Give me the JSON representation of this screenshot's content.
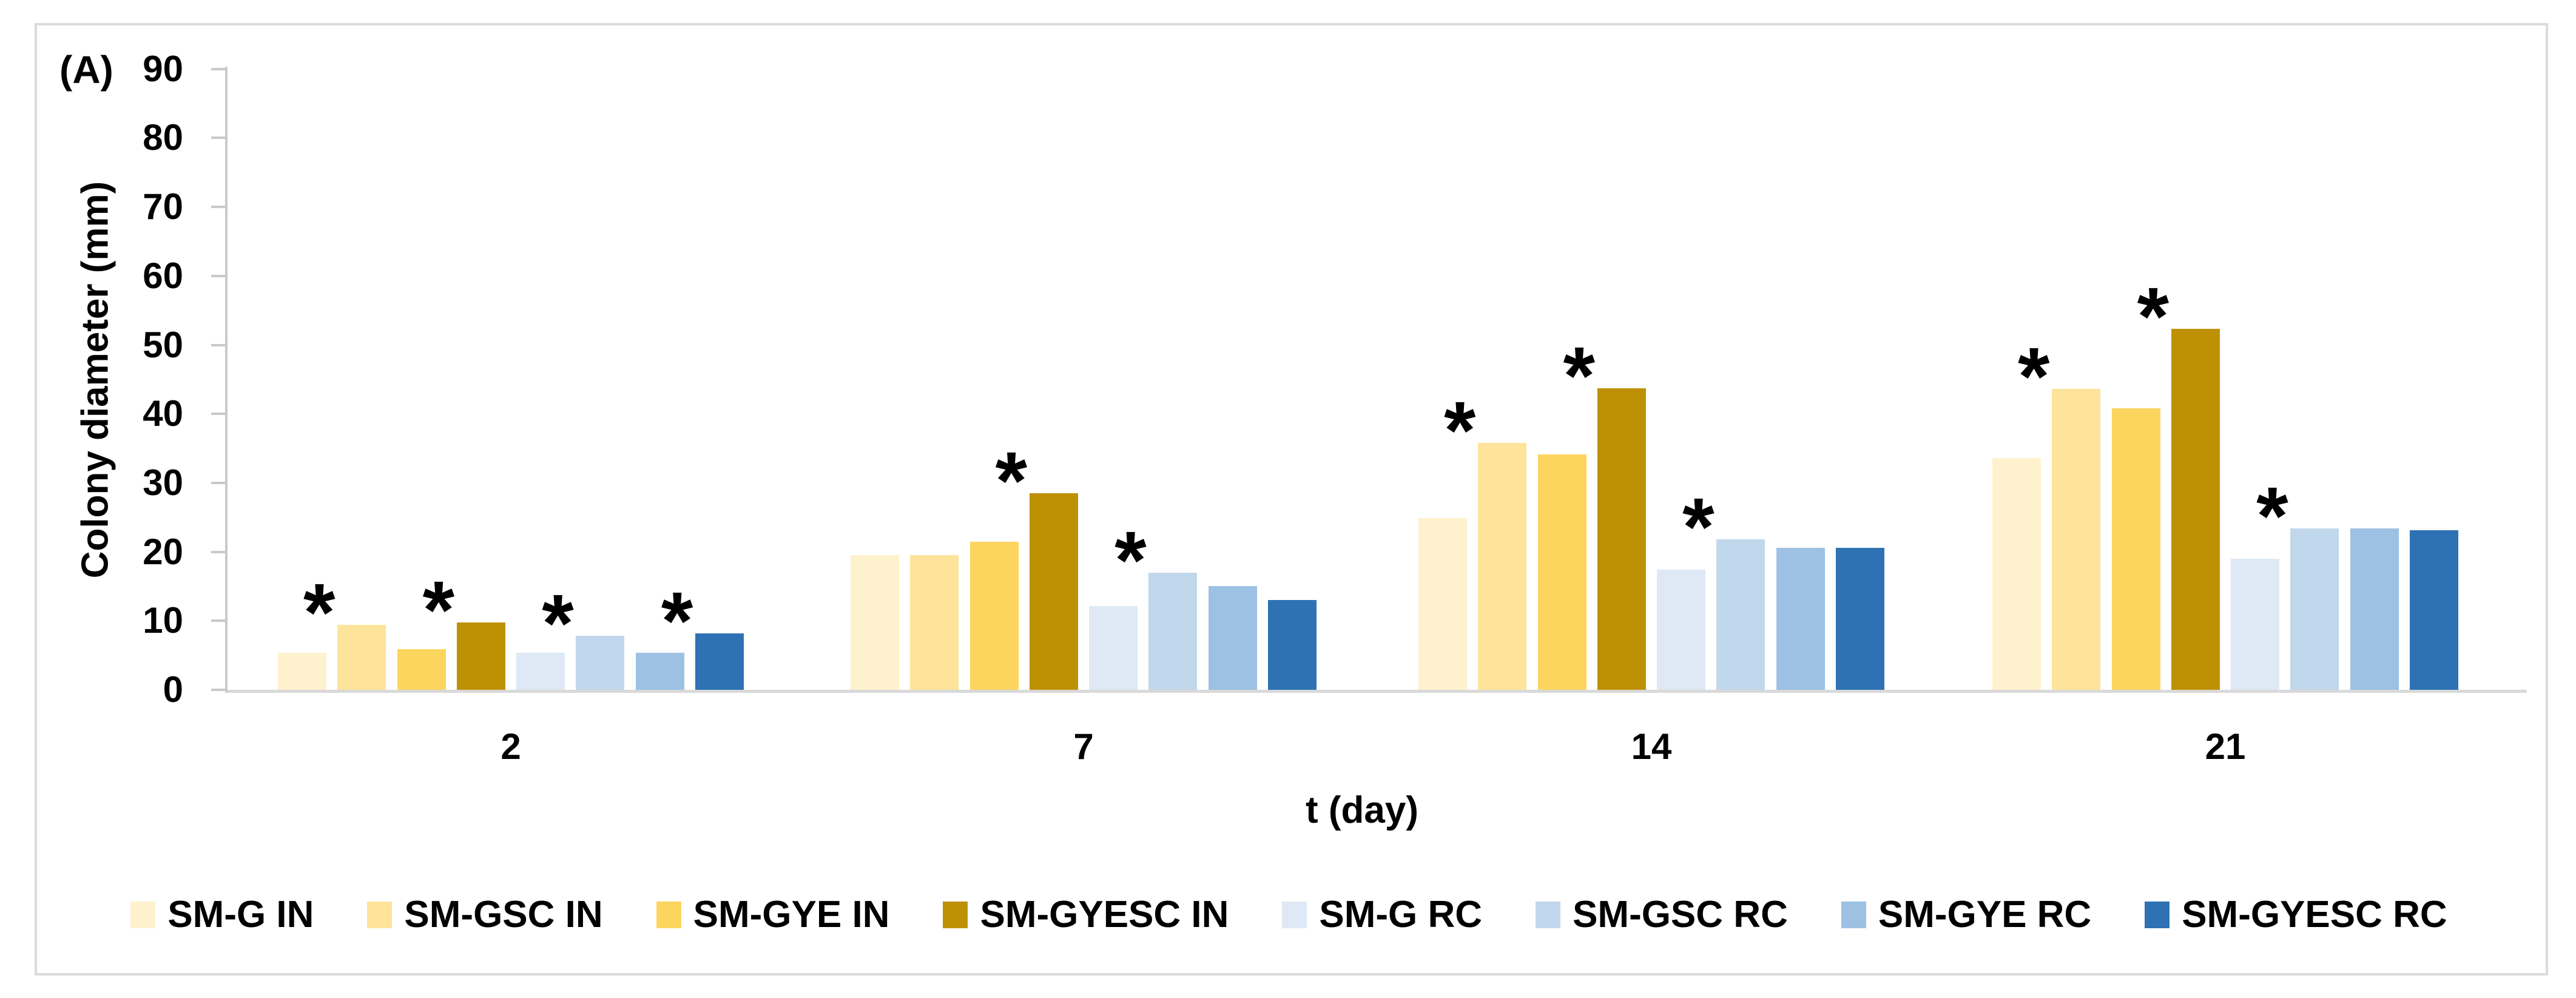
{
  "figure": {
    "panel_label": "(A)"
  },
  "chart_data": {
    "type": "bar",
    "title": "",
    "xlabel": "t (day)",
    "ylabel": "Colony diameter (mm)",
    "ylim": [
      0,
      90
    ],
    "ytick_step": 10,
    "ytick_labels": [
      "0",
      "10",
      "20",
      "30",
      "40",
      "50",
      "60",
      "70",
      "80",
      "90"
    ],
    "grid": false,
    "legend_position": "bottom",
    "significance_marker": "*",
    "categories": [
      "2",
      "7",
      "14",
      "21"
    ],
    "series": [
      {
        "name": "SM-G IN",
        "color": "#FEF1CD",
        "values": [
          5.4,
          19.5,
          24.9,
          33.6
        ],
        "significant": [
          false,
          false,
          false,
          false
        ]
      },
      {
        "name": "SM-GSC IN",
        "color": "#FDE49A",
        "values": [
          9.4,
          19.5,
          35.8,
          43.6
        ],
        "significant": [
          true,
          false,
          true,
          true
        ]
      },
      {
        "name": "SM-GYE IN",
        "color": "#FCD55F",
        "values": [
          5.9,
          21.5,
          34.1,
          40.8
        ],
        "significant": [
          false,
          false,
          false,
          false
        ]
      },
      {
        "name": "SM-GYESC IN",
        "color": "#BE9104",
        "values": [
          9.8,
          28.5,
          43.7,
          52.3
        ],
        "significant": [
          true,
          true,
          true,
          true
        ]
      },
      {
        "name": "SM-G RC",
        "color": "#DEE9F5",
        "values": [
          5.4,
          12.1,
          17.4,
          19.0
        ],
        "significant": [
          false,
          false,
          false,
          false
        ]
      },
      {
        "name": "SM-GSC RC",
        "color": "#C1D7EB",
        "values": [
          7.8,
          17.0,
          21.8,
          23.4
        ],
        "significant": [
          true,
          true,
          true,
          true
        ]
      },
      {
        "name": "SM-GYE RC",
        "color": "#9CC1E3",
        "values": [
          5.4,
          15.0,
          20.6,
          23.4
        ],
        "significant": [
          false,
          false,
          false,
          false
        ]
      },
      {
        "name": "SM-GYESC RC",
        "color": "#2E72B4",
        "values": [
          8.2,
          13.0,
          20.6,
          23.1
        ],
        "significant": [
          true,
          false,
          false,
          false
        ]
      }
    ]
  }
}
